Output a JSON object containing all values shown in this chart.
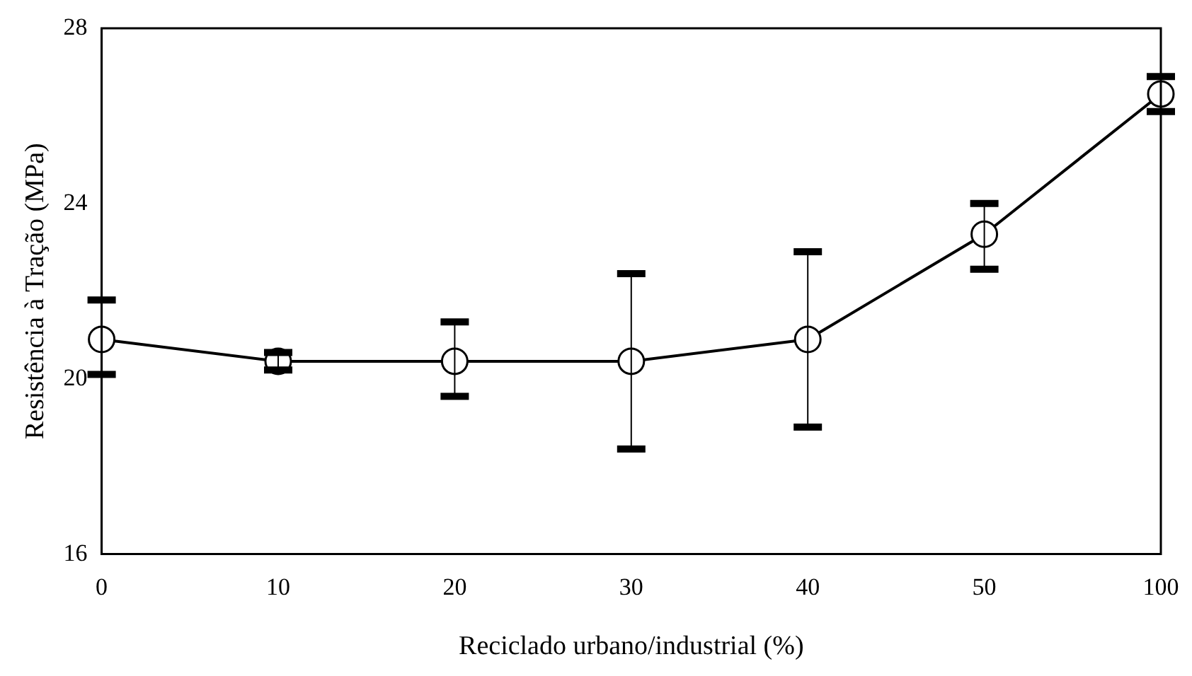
{
  "chart_data": {
    "type": "line",
    "xlabel": "Reciclado urbano/industrial (%)",
    "ylabel": "Resistência à Tração (MPa)",
    "categories": [
      "0",
      "10",
      "20",
      "30",
      "40",
      "50",
      "100"
    ],
    "series": [
      {
        "color": "#000000",
        "values": [
          20.9,
          20.4,
          20.4,
          20.4,
          20.9,
          23.3,
          26.5
        ],
        "errors": [
          [
            20.1,
            21.8
          ],
          [
            20.2,
            20.6
          ],
          [
            19.6,
            21.3
          ],
          [
            18.4,
            22.4
          ],
          [
            18.9,
            22.9
          ],
          [
            22.5,
            24.0
          ],
          [
            26.1,
            26.9
          ]
        ]
      }
    ],
    "ylim": [
      16,
      28
    ],
    "yticks": [
      16,
      20,
      24,
      28
    ],
    "grid": false,
    "legend": false,
    "marker": "circle",
    "line_style": "solid"
  }
}
